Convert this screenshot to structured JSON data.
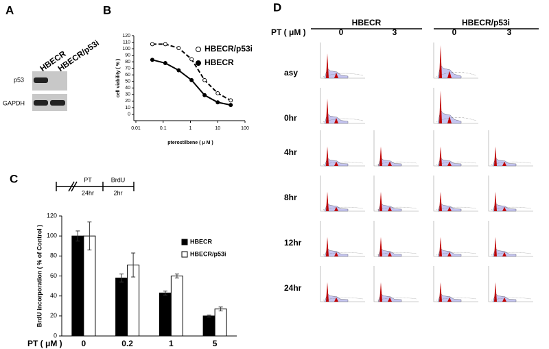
{
  "panel_letters": [
    "A",
    "B",
    "C",
    "D"
  ],
  "blot": {
    "lanes": [
      "HBECR",
      "HBECR/p53i"
    ],
    "proteins": [
      "p53",
      "GAPDH"
    ]
  },
  "chart_data": [
    {
      "type": "line",
      "xlabel": "pterostilbene ( μ M )",
      "ylabel": "cell viability ( % )",
      "log_x": true,
      "x": [
        0.04,
        0.12,
        0.37,
        1.1,
        3.3,
        10,
        30
      ],
      "series": [
        {
          "name": "HBECR/p53i",
          "color": "#000000",
          "line_style": "dashed",
          "marker_fill": "#ffffff",
          "values": [
            107,
            107,
            101,
            84,
            52,
            32,
            21
          ]
        },
        {
          "name": "HBECR",
          "color": "#000000",
          "line_style": "solid",
          "marker_fill": "#000000",
          "values": [
            83,
            78,
            67,
            52,
            29,
            18,
            14
          ]
        }
      ],
      "xlim": [
        0.01,
        100
      ],
      "xticks": [
        0.01,
        0.1,
        1,
        10,
        100
      ],
      "ylim": [
        -10,
        120
      ],
      "yticks": [
        0,
        10,
        20,
        30,
        40,
        50,
        60,
        70,
        80,
        90,
        100,
        110,
        120
      ]
    },
    {
      "type": "bar",
      "ylabel": "BrdU incorporation ( % of Control )",
      "xlabel": "PT (  μM )",
      "categories": [
        "0",
        "0.2",
        "1",
        "5"
      ],
      "series": [
        {
          "name": "HBECR",
          "color": "#000000",
          "values": [
            100,
            58,
            43,
            20
          ],
          "errors": [
            5,
            4,
            2,
            1
          ]
        },
        {
          "name": "HBECR/p53i",
          "color": "#ffffff",
          "values": [
            100,
            71,
            60,
            27
          ],
          "errors": [
            14,
            12,
            2,
            2
          ]
        }
      ],
      "ylim": [
        0,
        120
      ],
      "yticks": [
        0,
        20,
        40,
        60,
        80,
        100,
        120
      ],
      "timeline": {
        "treatment": "PT",
        "treatment_time": "24hr",
        "label": "BrdU",
        "label_time": "2hr"
      }
    }
  ],
  "flow": {
    "groups": [
      "HBECR",
      "HBECR/p53i"
    ],
    "dose_label": "PT ( μM )",
    "doses": [
      "0",
      "3",
      "0",
      "3"
    ],
    "rows": [
      "asy",
      "0hr",
      "4hr",
      "8hr",
      "12hr",
      "24hr"
    ]
  }
}
